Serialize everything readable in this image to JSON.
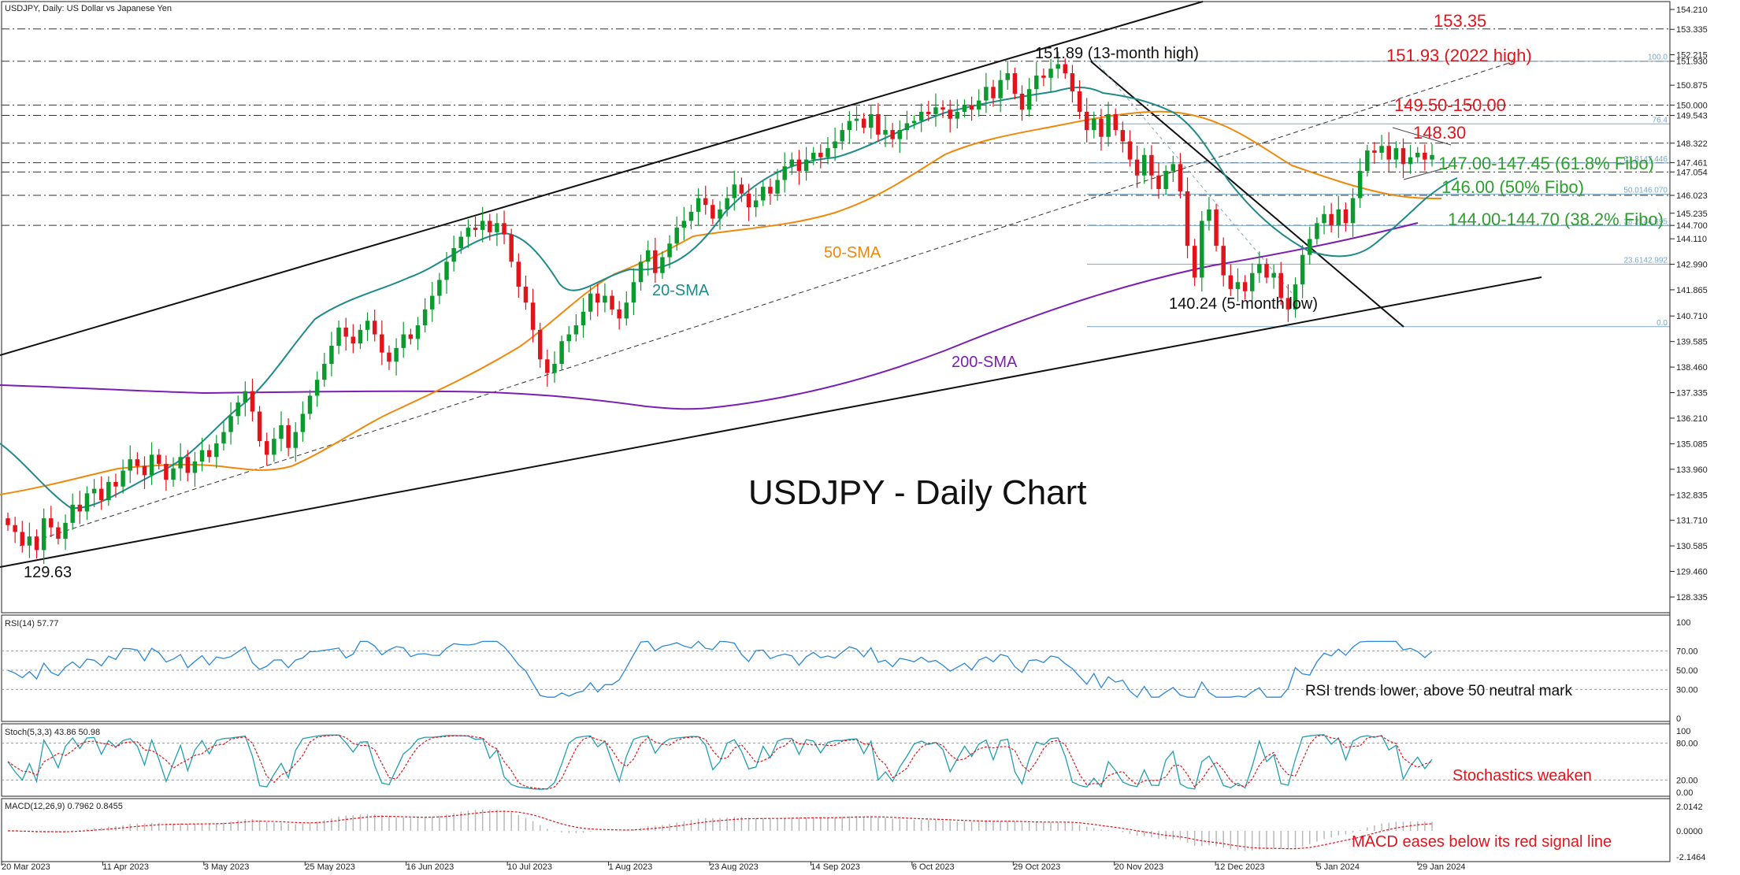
{
  "header": {
    "symbol_line": "USDJPY, Daily:  US Dollar vs Japanese Yen",
    "rsi_label": "RSI(14) 57.77",
    "stoch_label": "Stoch(5,3,3) 43.86 50.98",
    "macd_label": "MACD(12,26,9) 0.7962 0.8455"
  },
  "chart_data": {
    "type": "candlestick",
    "title": "USDJPY - Daily Chart",
    "ylim": [
      127.8,
      154.4
    ],
    "price_axis_ticks": [
      "154.210",
      "153.335",
      "152.215",
      "151.930",
      "150.875",
      "150.000",
      "149.543",
      "148.322",
      "147.461",
      "147.054",
      "146.023",
      "145.235",
      "144.700",
      "144.110",
      "142.990",
      "141.865",
      "140.710",
      "139.585",
      "138.460",
      "137.335",
      "136.210",
      "135.085",
      "133.960",
      "132.835",
      "131.710",
      "130.585",
      "129.460",
      "128.335"
    ],
    "price_axis_values": [
      154.21,
      153.335,
      152.215,
      151.93,
      150.875,
      150.0,
      149.543,
      148.322,
      147.461,
      147.054,
      146.023,
      145.235,
      144.7,
      144.11,
      142.99,
      141.865,
      140.71,
      139.585,
      138.46,
      137.335,
      136.21,
      135.085,
      133.96,
      132.835,
      131.71,
      130.585,
      129.46,
      128.335
    ],
    "x_axis_labels": [
      "20 Mar 2023",
      "11 Apr 2023",
      "3 May 2023",
      "25 May 2023",
      "16 Jun 2023",
      "10 Jul 2023",
      "1 Aug 2023",
      "23 Aug 2023",
      "14 Sep 2023",
      "6 Oct 2023",
      "29 Oct 2023",
      "20 Nov 2023",
      "12 Dec 2023",
      "5 Jan 2024",
      "29 Jan 2024"
    ],
    "horizontal_levels": [
      153.35,
      151.93,
      150.0,
      149.543,
      148.322,
      147.461,
      147.054,
      146.023,
      144.7
    ],
    "key_points": {
      "low_start": 129.63,
      "high_13m": 151.89,
      "low_5m": 140.24
    },
    "fibonacci": {
      "levels": [
        {
          "label": "100.0",
          "value": 151.93
        },
        {
          "label": "76.4",
          "value": 149.17
        },
        {
          "label": "61.8147.446",
          "value": 147.45
        },
        {
          "label": "50.0146.070",
          "value": 146.07
        },
        {
          "label": "38.2144.695",
          "value": 144.695
        },
        {
          "label": "23.6142.992",
          "value": 142.992
        },
        {
          "label": "0.0",
          "value": 140.24
        }
      ]
    },
    "closes": [
      131.5,
      131.2,
      130.6,
      131.0,
      130.4,
      131.8,
      131.4,
      130.9,
      131.6,
      132.4,
      132.1,
      132.9,
      133.1,
      132.6,
      133.4,
      133.2,
      133.9,
      134.4,
      134.1,
      133.7,
      134.6,
      134.2,
      133.5,
      134.0,
      134.5,
      133.8,
      134.3,
      134.8,
      134.5,
      135.1,
      135.6,
      136.3,
      136.9,
      137.4,
      136.5,
      135.2,
      134.6,
      135.3,
      135.9,
      134.9,
      135.6,
      136.4,
      137.2,
      137.9,
      138.6,
      139.4,
      140.2,
      139.8,
      139.5,
      140.1,
      140.5,
      139.9,
      139.1,
      138.7,
      139.3,
      139.9,
      139.7,
      140.3,
      141.0,
      141.6,
      142.3,
      143.1,
      143.7,
      144.2,
      144.6,
      144.5,
      144.9,
      144.4,
      144.8,
      144.3,
      143.1,
      142.0,
      141.3,
      140.1,
      138.8,
      138.2,
      138.6,
      139.6,
      139.9,
      140.3,
      140.9,
      141.7,
      141.3,
      141.6,
      141.0,
      140.6,
      141.3,
      142.2,
      143.1,
      143.6,
      142.6,
      143.3,
      143.9,
      144.6,
      144.9,
      145.3,
      145.9,
      145.6,
      145.0,
      145.4,
      145.9,
      146.5,
      146.1,
      145.5,
      145.8,
      146.4,
      146.1,
      146.7,
      147.3,
      147.6,
      147.1,
      147.6,
      147.9,
      147.7,
      148.1,
      148.4,
      148.9,
      149.3,
      149.4,
      149.0,
      149.6,
      148.7,
      148.9,
      148.5,
      148.9,
      149.2,
      149.3,
      149.7,
      149.6,
      149.9,
      149.8,
      149.4,
      149.7,
      150.0,
      149.8,
      150.2,
      150.8,
      150.3,
      151.1,
      151.4,
      150.5,
      149.8,
      150.7,
      151.3,
      151.2,
      151.6,
      151.8,
      151.4,
      150.6,
      149.7,
      148.9,
      149.4,
      148.6,
      149.6,
      148.9,
      148.4,
      147.6,
      146.9,
      147.8,
      146.9,
      146.3,
      147.1,
      147.4,
      146.2,
      143.8,
      142.4,
      144.9,
      145.4,
      143.8,
      142.5,
      141.9,
      142.2,
      141.8,
      142.6,
      143.0,
      142.4,
      142.6,
      141.5,
      141.0,
      142.1,
      143.4,
      144.1,
      144.8,
      145.2,
      144.7,
      145.4,
      144.8,
      145.9,
      147.1,
      148.0,
      147.9,
      148.2,
      147.6,
      148.1,
      147.4,
      147.7,
      147.9,
      147.6,
      147.8
    ]
  },
  "sma_labels": {
    "sma20": "20-SMA",
    "sma50": "50-SMA",
    "sma200": "200-SMA"
  },
  "annotations": {
    "a153": "153.35",
    "a151_93": "151.93 (2022 high)",
    "a149_5": "149.50-150.00",
    "a148_3": "148.30",
    "a147": "147.00-147.45 (61.8% Fibo)",
    "a146": "146.00 (50% Fibo)",
    "a144": "144.00-144.70 (38.2% Fibo)",
    "high_13m": "151.89 (13-month high)",
    "low_5m": "140.24 (5-month low)",
    "low_start": "129.63"
  },
  "rsi": {
    "ticks": [
      "100",
      "70.00",
      "50.00",
      "30.00",
      "0"
    ],
    "tick_values": [
      100,
      70,
      50,
      30,
      0
    ],
    "comment": "RSI trends lower, above 50 neutral mark"
  },
  "stoch": {
    "ticks": [
      "100",
      "80.00",
      "20.00",
      "0.00"
    ],
    "tick_values": [
      100,
      80,
      20,
      0
    ],
    "comment": "Stochastics weaken"
  },
  "macd": {
    "ticks": [
      "2.0142",
      "0.0000",
      "-2.1464"
    ],
    "tick_values": [
      2.0142,
      0.0,
      -2.1464
    ],
    "comment": "MACD eases below its red signal line"
  },
  "colors": {
    "bull": "#0b9a2d",
    "bear": "#e0151b",
    "sma20": "#1f8a8a",
    "sma50": "#f0880c",
    "sma200": "#7a1fb2",
    "rsi": "#2b88d8",
    "stoch_main": "#20a0b0",
    "signal": "#e0151b",
    "resistance": "#e0151b",
    "support": "#2e9e2e"
  }
}
